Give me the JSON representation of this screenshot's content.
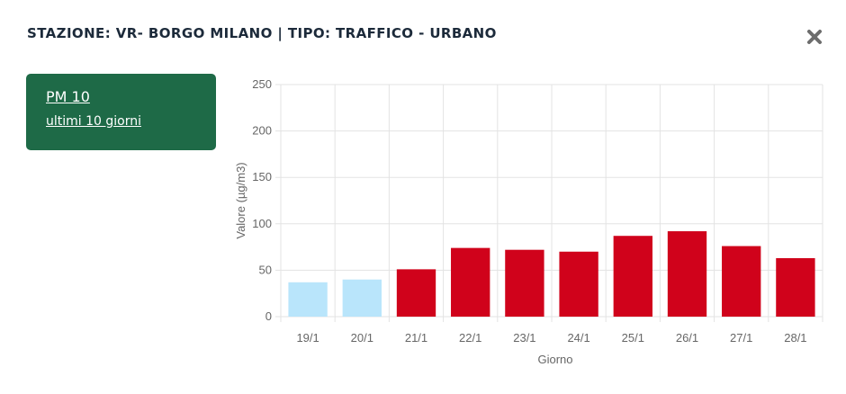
{
  "header": {
    "title": "STAZIONE: VR- BORGO MILANO | TIPO: TRAFFICO - URBANO",
    "close_label": "✖"
  },
  "card": {
    "pollutant": "PM 10",
    "period": "ultimi 10 giorni",
    "color": "#1e6a47"
  },
  "chart_data": {
    "type": "bar",
    "categories": [
      "19/1",
      "20/1",
      "21/1",
      "22/1",
      "23/1",
      "24/1",
      "25/1",
      "26/1",
      "27/1",
      "28/1"
    ],
    "values": [
      37,
      40,
      51,
      74,
      72,
      70,
      87,
      92,
      76,
      63
    ],
    "colors": [
      "#b9e5fb",
      "#b9e5fb",
      "#d0021b",
      "#d0021b",
      "#d0021b",
      "#d0021b",
      "#d0021b",
      "#d0021b",
      "#d0021b",
      "#d0021b"
    ],
    "xlabel": "Giorno",
    "ylabel": "Valore (µg/m3)",
    "ylim": [
      0,
      250
    ],
    "yticks": [
      0,
      50,
      100,
      150,
      200,
      250
    ],
    "grid": true
  }
}
